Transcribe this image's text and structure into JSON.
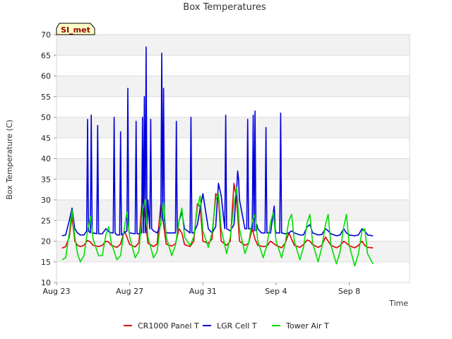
{
  "chart_data": {
    "type": "line",
    "title": "Box Temperatures",
    "xlabel": "Time",
    "ylabel": "Box Temperature (C)",
    "badge": "SI_met",
    "ylim": [
      10,
      70
    ],
    "xlim": [
      0,
      19.3
    ],
    "yticks": [
      10,
      15,
      20,
      25,
      30,
      35,
      40,
      45,
      50,
      55,
      60,
      65,
      70
    ],
    "xticks": [
      {
        "value": 0,
        "label": "Aug 23"
      },
      {
        "value": 4,
        "label": "Aug 27"
      },
      {
        "value": 8,
        "label": "Aug 31"
      },
      {
        "value": 12,
        "label": "Sep 4"
      },
      {
        "value": 16,
        "label": "Sep 8"
      }
    ],
    "series": [
      {
        "name": "CR1000 Panel T",
        "color": "#dd0000",
        "x": [
          0.3,
          0.5,
          0.7,
          0.85,
          1.0,
          1.15,
          1.3,
          1.5,
          1.7,
          1.85,
          2.0,
          2.3,
          2.5,
          2.7,
          2.85,
          3.0,
          3.3,
          3.5,
          3.7,
          3.85,
          4.0,
          4.3,
          4.5,
          4.7,
          4.85,
          5.0,
          5.3,
          5.5,
          5.7,
          5.85,
          6.0,
          6.3,
          6.5,
          6.7,
          6.85,
          7.0,
          7.3,
          7.5,
          7.7,
          7.85,
          8.0,
          8.3,
          8.5,
          8.7,
          8.85,
          9.0,
          9.3,
          9.5,
          9.7,
          9.85,
          10.0,
          10.3,
          10.5,
          10.7,
          10.85,
          11.0,
          11.3,
          11.5,
          11.7,
          11.85,
          12.0,
          12.3,
          12.5,
          12.7,
          12.85,
          13.0,
          13.3,
          13.5,
          13.7,
          13.85,
          14.0,
          14.3,
          14.5,
          14.7,
          14.85,
          15.0,
          15.3,
          15.5,
          15.7,
          15.85,
          16.0,
          16.3,
          16.5,
          16.7,
          16.85,
          17.0,
          17.3
        ],
        "values": [
          18.3,
          18.7,
          21.0,
          26.0,
          20.0,
          19.0,
          18.7,
          19.0,
          20.2,
          19.8,
          19.0,
          18.7,
          19.0,
          20.0,
          19.8,
          19.0,
          18.5,
          19.3,
          22.5,
          21.0,
          19.2,
          18.6,
          19.6,
          31.0,
          25.0,
          19.5,
          18.7,
          19.3,
          29.0,
          24.0,
          19.3,
          18.8,
          19.4,
          23.0,
          22.0,
          19.2,
          18.7,
          20.0,
          29.0,
          28.5,
          20.0,
          19.5,
          20.5,
          31.5,
          30.5,
          20.0,
          19.0,
          20.0,
          34.0,
          30.0,
          20.0,
          19.0,
          19.5,
          23.0,
          20.5,
          19.0,
          18.7,
          18.8,
          20.0,
          19.5,
          19.0,
          18.4,
          19.5,
          22.0,
          20.5,
          19.0,
          18.5,
          19.2,
          20.3,
          20.0,
          19.2,
          18.5,
          19.0,
          21.0,
          20.0,
          19.0,
          18.4,
          18.9,
          20.0,
          19.5,
          18.9,
          18.4,
          19.0,
          20.0,
          19.0,
          18.5,
          18.4
        ]
      },
      {
        "name": "LGR Cell T",
        "color": "#0000dd",
        "x": [
          0.3,
          0.5,
          0.7,
          0.85,
          1.0,
          1.15,
          1.3,
          1.5,
          1.65,
          1.7,
          1.75,
          1.85,
          1.9,
          1.95,
          2.0,
          2.2,
          2.25,
          2.3,
          2.5,
          2.7,
          2.85,
          3.0,
          3.1,
          3.15,
          3.2,
          3.3,
          3.45,
          3.5,
          3.55,
          3.7,
          3.85,
          3.9,
          3.95,
          4.0,
          4.3,
          4.35,
          4.4,
          4.5,
          4.65,
          4.7,
          4.75,
          4.8,
          4.85,
          4.9,
          4.95,
          5.0,
          5.1,
          5.15,
          5.2,
          5.3,
          5.5,
          5.7,
          5.75,
          5.8,
          5.85,
          5.9,
          5.95,
          6.0,
          6.2,
          6.5,
          6.55,
          6.6,
          6.7,
          6.85,
          7.0,
          7.3,
          7.35,
          7.4,
          7.5,
          7.7,
          7.85,
          8.0,
          8.3,
          8.5,
          8.7,
          8.85,
          9.0,
          9.2,
          9.25,
          9.3,
          9.5,
          9.7,
          9.85,
          9.9,
          9.95,
          10.0,
          10.3,
          10.4,
          10.45,
          10.5,
          10.7,
          10.75,
          10.8,
          10.85,
          10.9,
          10.95,
          11.0,
          11.2,
          11.4,
          11.45,
          11.5,
          11.7,
          11.85,
          11.9,
          11.95,
          12.0,
          12.2,
          12.25,
          12.3,
          12.5,
          12.7,
          12.85,
          13.0,
          13.3,
          13.5,
          13.7,
          13.85,
          14.0,
          14.3,
          14.5,
          14.7,
          14.85,
          15.0,
          15.3,
          15.5,
          15.7,
          15.85,
          16.0,
          16.3,
          16.5,
          16.7,
          16.85,
          17.0,
          17.3
        ],
        "values": [
          21.3,
          21.5,
          25.0,
          28.0,
          23.0,
          22.0,
          21.5,
          21.5,
          22.5,
          49.5,
          22.5,
          22.0,
          50.5,
          22.0,
          22.0,
          21.8,
          48.0,
          21.8,
          21.8,
          23.0,
          22.3,
          22.0,
          22.0,
          50.0,
          22.0,
          21.5,
          21.5,
          46.5,
          21.5,
          22.0,
          22.5,
          57.0,
          22.5,
          22.0,
          21.8,
          49.0,
          21.8,
          21.8,
          22.0,
          50.0,
          22.0,
          55.0,
          22.0,
          67.0,
          22.0,
          30.0,
          23.0,
          49.5,
          23.0,
          22.5,
          22.0,
          24.0,
          65.5,
          25.0,
          57.0,
          25.0,
          23.0,
          22.0,
          22.0,
          22.0,
          49.0,
          22.0,
          25.0,
          27.0,
          23.0,
          22.0,
          50.0,
          22.0,
          22.0,
          24.0,
          28.0,
          31.5,
          23.0,
          22.0,
          23.5,
          34.0,
          31.0,
          23.0,
          50.5,
          23.0,
          22.5,
          24.0,
          33.0,
          37.0,
          35.0,
          30.0,
          23.0,
          23.0,
          49.5,
          23.0,
          23.0,
          50.5,
          22.5,
          51.5,
          22.5,
          24.0,
          23.0,
          22.0,
          22.0,
          47.5,
          22.0,
          22.0,
          27.0,
          28.5,
          23.0,
          22.0,
          22.0,
          51.0,
          22.0,
          21.8,
          22.0,
          22.5,
          22.0,
          21.5,
          21.5,
          23.5,
          24.0,
          22.0,
          21.5,
          21.6,
          23.0,
          22.5,
          21.8,
          21.3,
          21.5,
          23.0,
          22.0,
          21.5,
          21.3,
          21.5,
          23.0,
          22.5,
          21.5,
          21.3
        ]
      },
      {
        "name": "Tower Air T",
        "color": "#00dd00",
        "x": [
          0.3,
          0.5,
          0.7,
          0.85,
          1.0,
          1.15,
          1.3,
          1.5,
          1.7,
          1.85,
          2.0,
          2.3,
          2.5,
          2.7,
          2.85,
          3.0,
          3.3,
          3.5,
          3.7,
          3.85,
          4.0,
          4.3,
          4.5,
          4.7,
          4.85,
          5.0,
          5.3,
          5.5,
          5.7,
          5.85,
          6.0,
          6.3,
          6.5,
          6.7,
          6.85,
          7.0,
          7.3,
          7.5,
          7.7,
          7.85,
          8.0,
          8.3,
          8.5,
          8.7,
          8.85,
          9.0,
          9.3,
          9.5,
          9.7,
          9.85,
          10.0,
          10.3,
          10.5,
          10.7,
          10.85,
          11.0,
          11.3,
          11.5,
          11.7,
          11.85,
          12.0,
          12.3,
          12.5,
          12.7,
          12.85,
          13.0,
          13.3,
          13.5,
          13.7,
          13.85,
          14.0,
          14.3,
          14.5,
          14.7,
          14.85,
          15.0,
          15.3,
          15.5,
          15.7,
          15.85,
          16.0,
          16.3,
          16.5,
          16.7,
          16.85,
          17.0,
          17.3
        ],
        "values": [
          15.5,
          16.0,
          22.0,
          27.5,
          21.0,
          17.0,
          15.0,
          16.5,
          22.5,
          26.0,
          20.5,
          16.5,
          16.5,
          21.5,
          23.5,
          19.5,
          15.5,
          16.5,
          23.0,
          27.0,
          21.0,
          16.0,
          17.5,
          27.5,
          30.0,
          21.0,
          16.0,
          17.5,
          25.0,
          29.5,
          21.0,
          16.5,
          19.0,
          25.0,
          28.0,
          21.0,
          19.0,
          21.0,
          28.0,
          31.0,
          22.5,
          18.5,
          22.0,
          30.0,
          31.5,
          23.0,
          17.0,
          21.0,
          29.0,
          33.0,
          23.0,
          17.0,
          19.5,
          25.0,
          26.5,
          20.0,
          16.0,
          19.0,
          24.5,
          27.0,
          20.0,
          16.0,
          19.5,
          25.0,
          26.5,
          20.0,
          15.5,
          18.5,
          24.5,
          26.5,
          19.5,
          15.0,
          18.5,
          24.0,
          26.5,
          19.0,
          14.5,
          17.5,
          23.5,
          26.5,
          19.0,
          14.0,
          17.0,
          22.5,
          23.0,
          17.0,
          14.5
        ]
      }
    ]
  }
}
